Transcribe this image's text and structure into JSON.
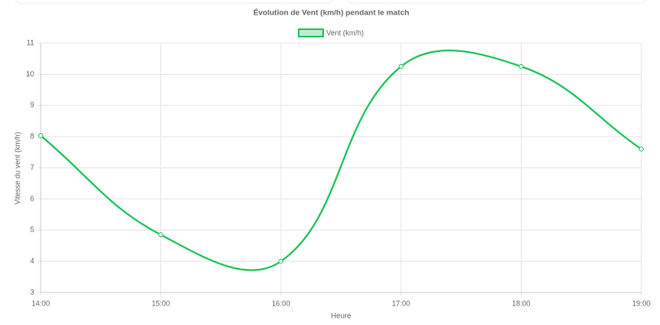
{
  "chart_data": {
    "type": "line",
    "title": "Évolution de Vent (km/h) pendant le match",
    "x_label": "Heure",
    "y_label": "Vitesse du vent (km/h)",
    "categories": [
      "14:00",
      "15:00",
      "16:00",
      "17:00",
      "18:00",
      "19:00"
    ],
    "series": [
      {
        "name": "Vent (km/h)",
        "color": "#22c55e",
        "values": [
          8.03,
          4.85,
          4.0,
          10.25,
          10.25,
          7.6
        ]
      }
    ],
    "ylim": [
      3,
      11
    ],
    "yticks": [
      3,
      4,
      5,
      6,
      7,
      8,
      9,
      10,
      11
    ],
    "grid": true,
    "legend": "top"
  }
}
